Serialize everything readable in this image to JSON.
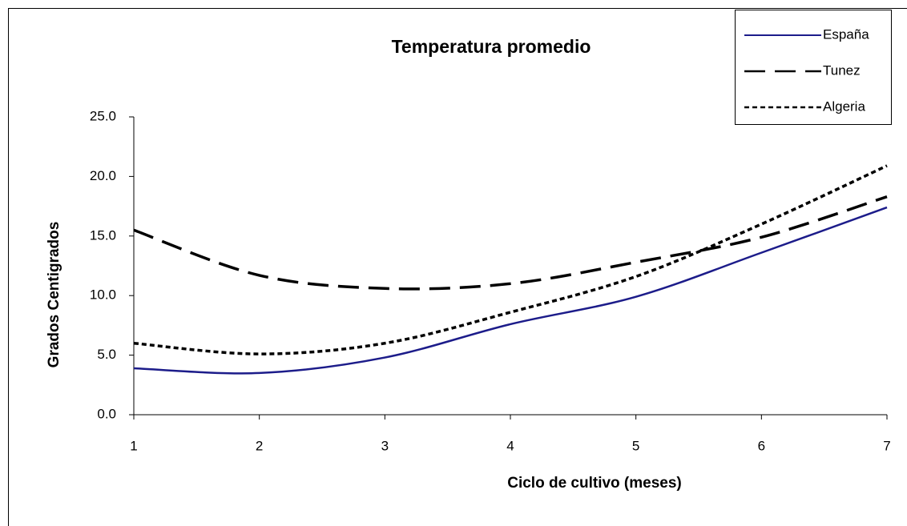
{
  "chart_data": {
    "type": "line",
    "title": "Temperatura promedio",
    "x_label": "Ciclo de cultivo (meses)",
    "y_label": "Grados Centigrados",
    "x": [
      1,
      2,
      3,
      4,
      5,
      6,
      7
    ],
    "xlim": [
      1,
      7
    ],
    "xticks": [
      1,
      2,
      3,
      4,
      5,
      6,
      7
    ],
    "ylim": [
      0,
      25
    ],
    "yticks": [
      {
        "value": 0,
        "label": "0.0"
      },
      {
        "value": 5,
        "label": "5.0"
      },
      {
        "value": 10,
        "label": "10.0"
      },
      {
        "value": 15,
        "label": "15.0"
      },
      {
        "value": 20,
        "label": "20.0"
      },
      {
        "value": 25,
        "label": "25.0"
      }
    ],
    "grid": false,
    "smooth": true,
    "legend_position": "top-right",
    "series": [
      {
        "name": "España",
        "color": "#1c1c8a",
        "line_style": "solid",
        "values": [
          3.9,
          3.5,
          4.8,
          7.6,
          9.9,
          13.6,
          17.4
        ]
      },
      {
        "name": "Tunez",
        "color": "#000000",
        "line_style": "long-dash",
        "values": [
          15.5,
          11.7,
          10.6,
          11.0,
          12.8,
          14.9,
          18.3
        ]
      },
      {
        "name": "Algeria",
        "color": "#000000",
        "line_style": "dash",
        "values": [
          6.0,
          5.1,
          6.0,
          8.6,
          11.6,
          16.0,
          20.9
        ]
      }
    ]
  }
}
